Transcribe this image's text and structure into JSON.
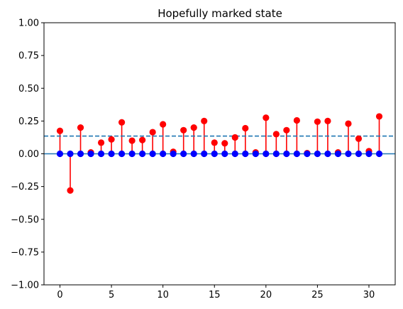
{
  "chart_data": {
    "type": "stem",
    "title": "Hopefully marked state",
    "xlabel": "",
    "ylabel": "",
    "xlim": [
      -1.55,
      32.55
    ],
    "ylim": [
      -1.0,
      1.0
    ],
    "x_ticks": [
      0,
      5,
      10,
      15,
      20,
      25,
      30
    ],
    "x_tick_labels": [
      "0",
      "5",
      "10",
      "15",
      "20",
      "25",
      "30"
    ],
    "y_ticks": [
      -1.0,
      -0.75,
      -0.5,
      -0.25,
      0.0,
      0.25,
      0.5,
      0.75,
      1.0
    ],
    "y_tick_labels": [
      "−1.00",
      "−0.75",
      "−0.50",
      "−0.25",
      "0.00",
      "0.25",
      "0.50",
      "0.75",
      "1.00"
    ],
    "grid": false,
    "x": [
      0,
      1,
      2,
      3,
      4,
      5,
      6,
      7,
      8,
      9,
      10,
      11,
      12,
      13,
      14,
      15,
      16,
      17,
      18,
      19,
      20,
      21,
      22,
      23,
      24,
      25,
      26,
      27,
      28,
      29,
      30,
      31
    ],
    "series": [
      {
        "style": "stem",
        "color": "#ff0000",
        "values": [
          0.175,
          -0.28,
          0.2,
          0.01,
          0.085,
          0.11,
          0.24,
          0.1,
          0.105,
          0.165,
          0.225,
          0.015,
          0.18,
          0.2,
          0.25,
          0.085,
          0.08,
          0.125,
          0.195,
          0.01,
          0.275,
          0.15,
          0.18,
          0.255,
          0.005,
          0.245,
          0.25,
          0.01,
          0.23,
          0.115,
          0.02,
          0.285
        ]
      },
      {
        "style": "stem-markers",
        "color": "#0000ff",
        "values": [
          0,
          0,
          0,
          0,
          0,
          0,
          0,
          0,
          0,
          0,
          0,
          0,
          0,
          0,
          0,
          0,
          0,
          0,
          0,
          0,
          0,
          0,
          0,
          0,
          0,
          0,
          0,
          0,
          0,
          0,
          0,
          0
        ]
      }
    ],
    "baseline": {
      "value": 0.0,
      "color": "#1f77b4",
      "style": "solid"
    },
    "mean_line": {
      "value": 0.135,
      "color": "#1f77b4",
      "style": "dashed"
    }
  }
}
